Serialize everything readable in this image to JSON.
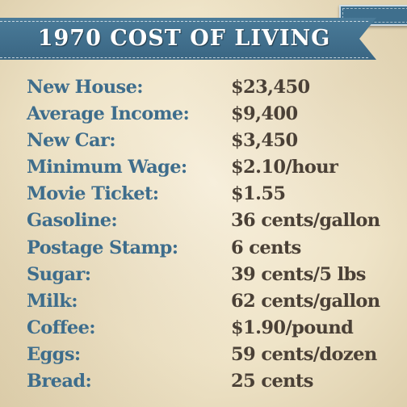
{
  "title": "1970 COST OF LIVING",
  "colors": {
    "banner": "#3f6f8d",
    "label": "#3e6d8c",
    "value": "#4a4036",
    "paper": "#efe4c8"
  },
  "items": [
    {
      "label": "New House:",
      "value": "$23,450"
    },
    {
      "label": "Average Income:",
      "value": "$9,400"
    },
    {
      "label": "New Car:",
      "value": "$3,450"
    },
    {
      "label": "Minimum Wage:",
      "value": "$2.10/hour"
    },
    {
      "label": "Movie Ticket:",
      "value": "$1.55"
    },
    {
      "label": "Gasoline:",
      "value": "36 cents/gallon"
    },
    {
      "label": "Postage Stamp:",
      "value": "6 cents"
    },
    {
      "label": "Sugar:",
      "value": "39 cents/5 lbs"
    },
    {
      "label": "Milk:",
      "value": "62 cents/gallon"
    },
    {
      "label": "Coffee:",
      "value": "$1.90/pound"
    },
    {
      "label": "Eggs:",
      "value": "59 cents/dozen"
    },
    {
      "label": "Bread:",
      "value": "25 cents"
    }
  ]
}
